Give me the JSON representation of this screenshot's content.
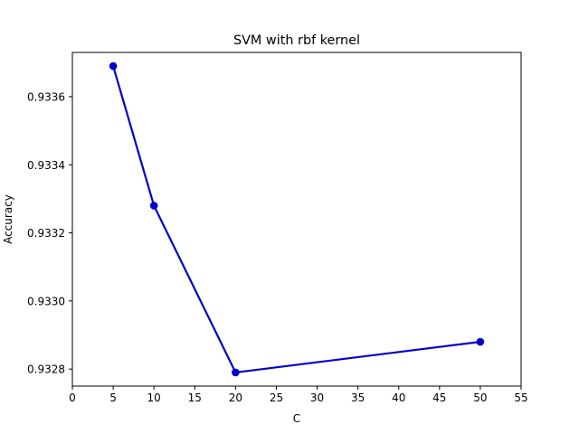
{
  "chart_data": {
    "type": "line",
    "title": "SVM with rbf kernel",
    "xlabel": "C",
    "ylabel": "Accuracy",
    "xlim": [
      0,
      55
    ],
    "ylim": [
      0.93275,
      0.93373
    ],
    "xticks": [
      0,
      5,
      10,
      15,
      20,
      25,
      30,
      35,
      40,
      45,
      50,
      55
    ],
    "xtick_labels": [
      "0",
      "5",
      "10",
      "15",
      "20",
      "25",
      "30",
      "35",
      "40",
      "45",
      "50",
      "55"
    ],
    "yticks": [
      0.9328,
      0.933,
      0.9332,
      0.9334,
      0.9336
    ],
    "ytick_labels": [
      "0.9328",
      "0.9330",
      "0.9332",
      "0.9334",
      "0.9336"
    ],
    "grid": false,
    "series": [
      {
        "x": [
          5,
          10,
          20,
          50
        ],
        "y": [
          0.93369,
          0.93328,
          0.93279,
          0.93288
        ],
        "color": "#0000cc",
        "marker": "circle"
      }
    ]
  }
}
